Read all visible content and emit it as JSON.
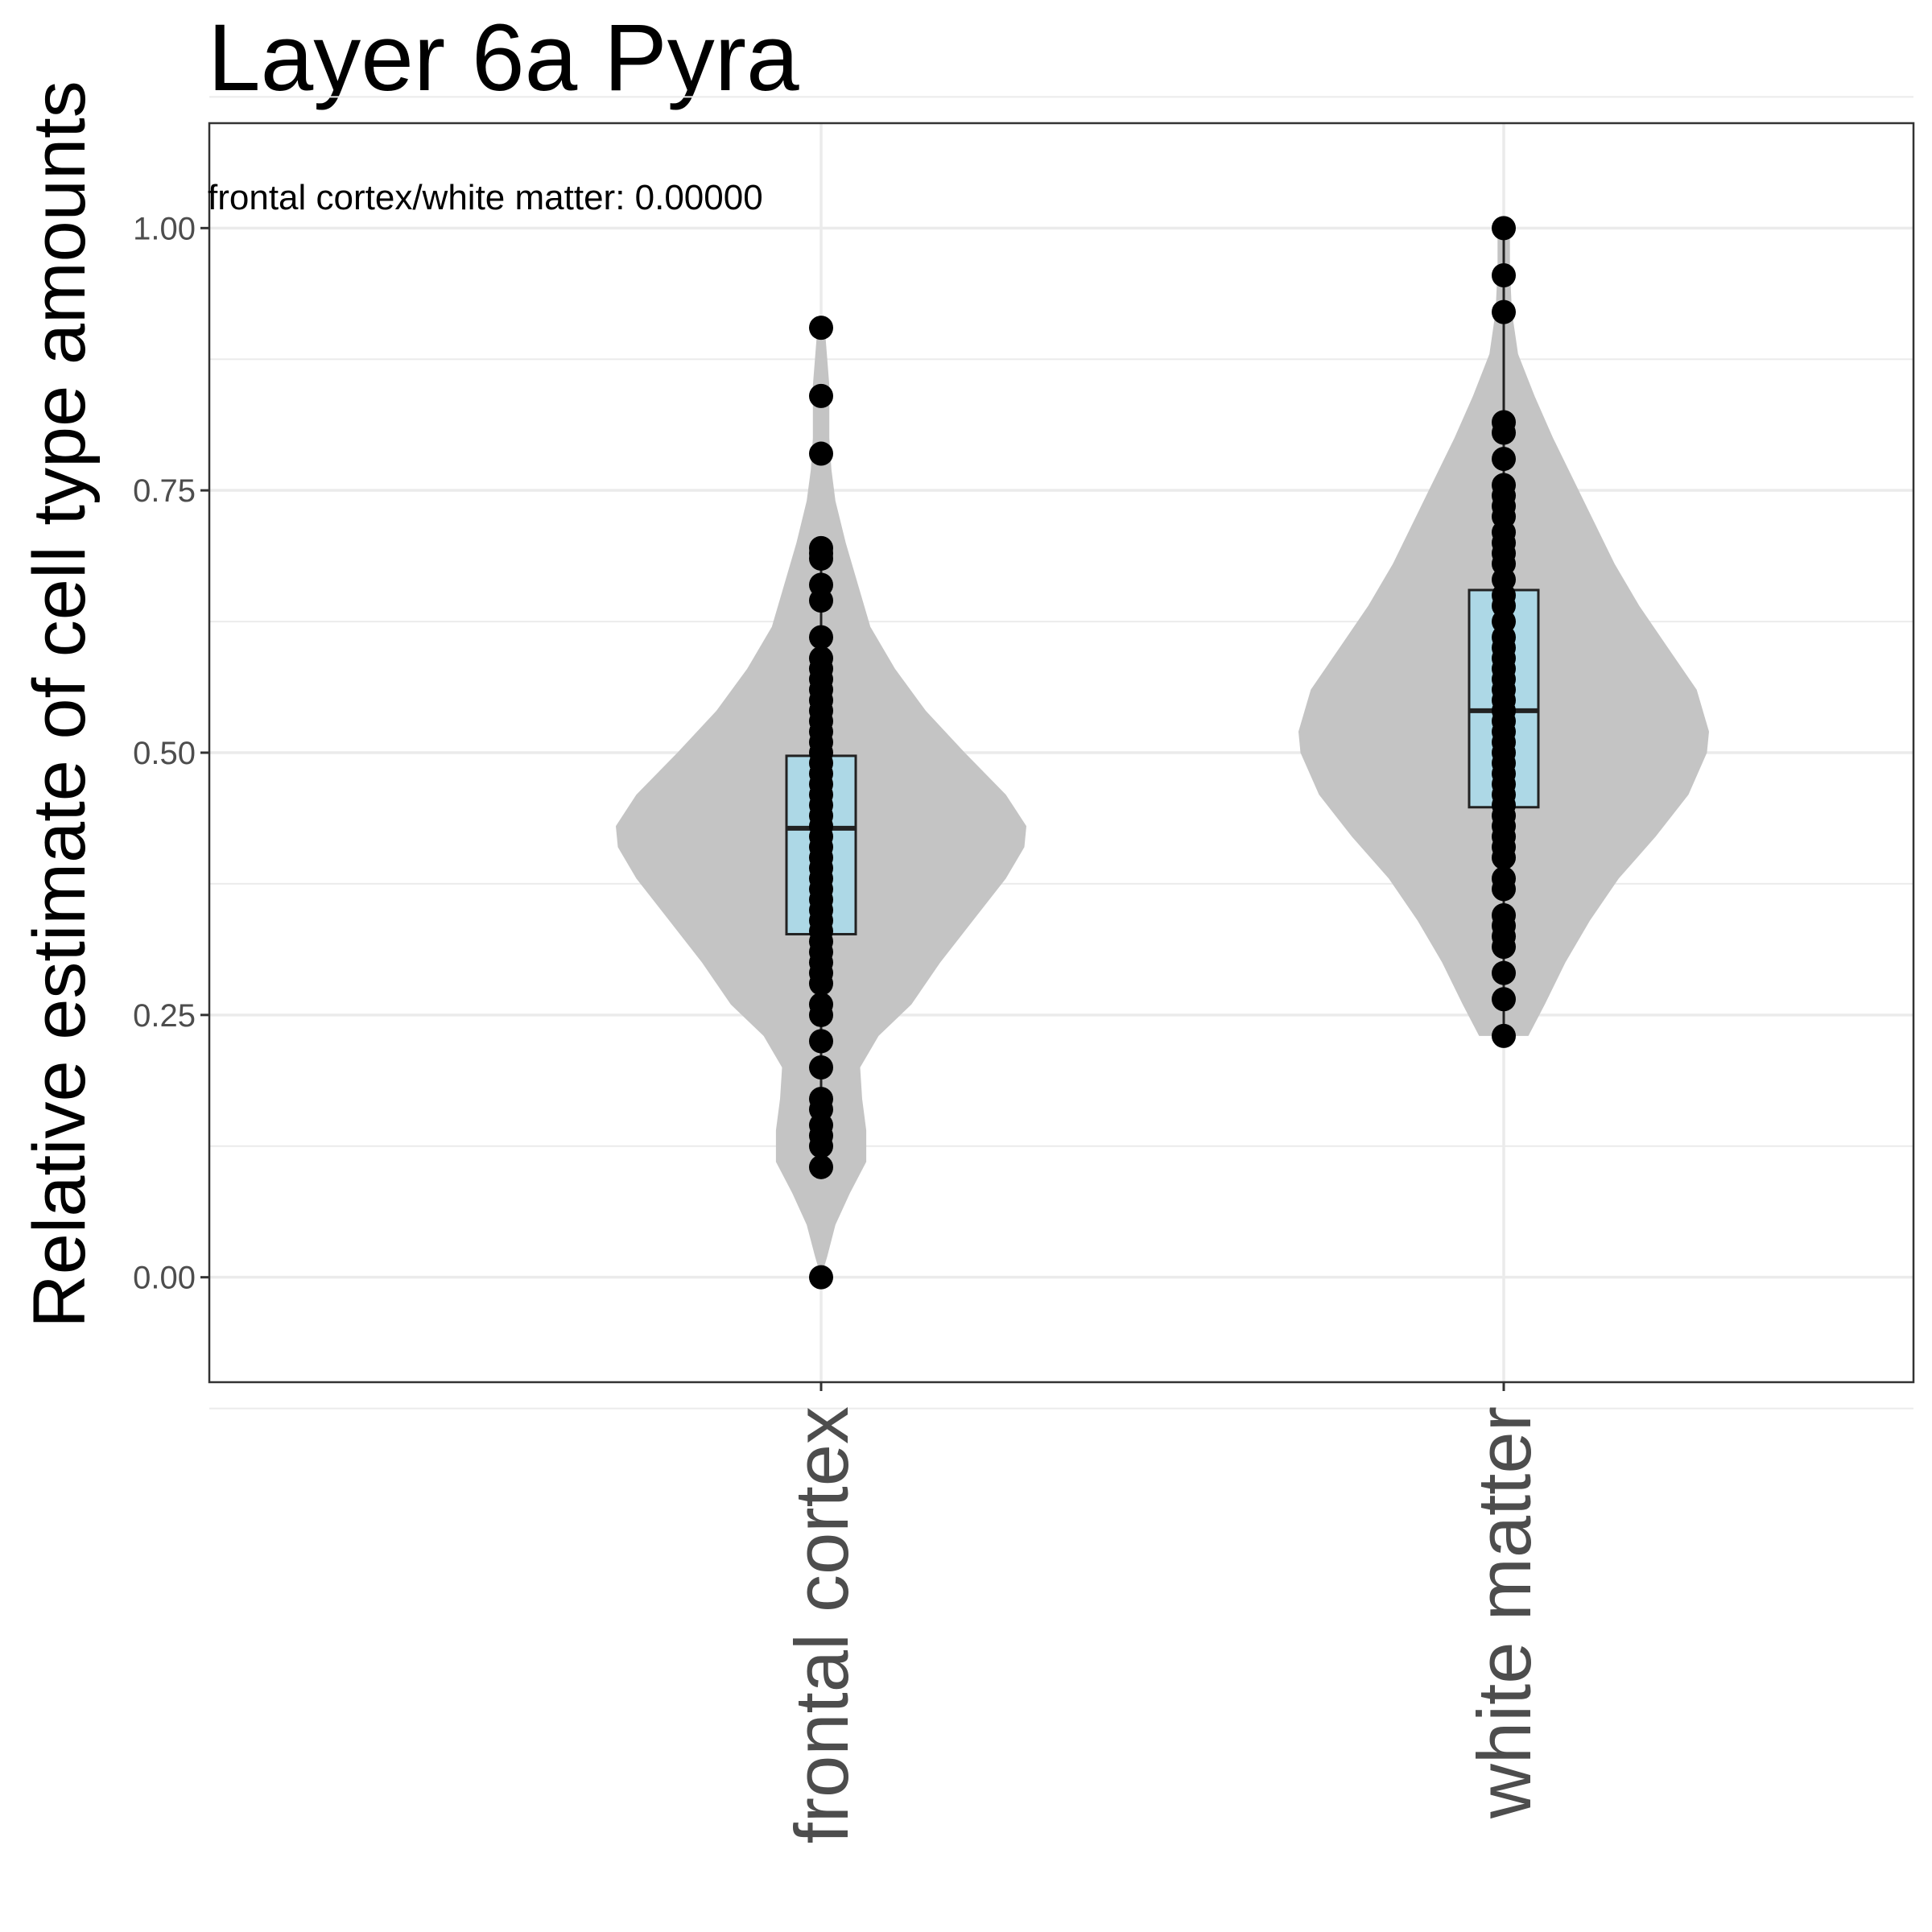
{
  "chart_data": {
    "type": "violin",
    "title": "Layer 6a Pyra",
    "xlabel": "",
    "ylabel": "Relative estimate of cell type amounts",
    "ylim": [
      -0.1,
      1.1
    ],
    "y_ticks": [
      0.0,
      0.25,
      0.5,
      0.75,
      1.0
    ],
    "y_tick_labels": [
      "0.00",
      "0.25",
      "0.50",
      "0.75",
      "1.00"
    ],
    "categories": [
      "frontal cortex",
      "white matter"
    ],
    "annotation": "frontal cortex/white matter: 0.00000",
    "grid": true,
    "colors": {
      "violin": "#c4c4c4",
      "box": "#add8e6",
      "box_stroke": "#222222",
      "points": "#000000",
      "grid": "#ebebeb",
      "panel_border": "#333333"
    },
    "groups": [
      {
        "name": "frontal cortex",
        "box": {
          "min": 0.105,
          "q1": 0.327,
          "median": 0.428,
          "q3": 0.497,
          "max": 0.69
        },
        "violin_profile": [
          [
            0.0,
            0.0
          ],
          [
            0.02,
            0.03
          ],
          [
            0.05,
            0.07
          ],
          [
            0.08,
            0.14
          ],
          [
            0.11,
            0.22
          ],
          [
            0.14,
            0.22
          ],
          [
            0.17,
            0.2
          ],
          [
            0.2,
            0.19
          ],
          [
            0.23,
            0.28
          ],
          [
            0.26,
            0.44
          ],
          [
            0.3,
            0.58
          ],
          [
            0.34,
            0.74
          ],
          [
            0.38,
            0.9
          ],
          [
            0.41,
            0.99
          ],
          [
            0.43,
            1.0
          ],
          [
            0.46,
            0.9
          ],
          [
            0.5,
            0.7
          ],
          [
            0.54,
            0.51
          ],
          [
            0.58,
            0.36
          ],
          [
            0.62,
            0.24
          ],
          [
            0.66,
            0.18
          ],
          [
            0.7,
            0.12
          ],
          [
            0.74,
            0.07
          ],
          [
            0.77,
            0.05
          ],
          [
            0.8,
            0.04
          ],
          [
            0.85,
            0.04
          ],
          [
            0.9,
            0.02
          ]
        ],
        "points": [
          0.905,
          0.84,
          0.785,
          0.695,
          0.69,
          0.685,
          0.66,
          0.645,
          0.61,
          0.59,
          0.58,
          0.57,
          0.56,
          0.55,
          0.54,
          0.53,
          0.52,
          0.51,
          0.5,
          0.49,
          0.48,
          0.47,
          0.46,
          0.45,
          0.44,
          0.43,
          0.42,
          0.41,
          0.4,
          0.39,
          0.38,
          0.37,
          0.36,
          0.35,
          0.34,
          0.33,
          0.32,
          0.31,
          0.3,
          0.29,
          0.28,
          0.26,
          0.25,
          0.225,
          0.2,
          0.17,
          0.16,
          0.145,
          0.135,
          0.125,
          0.105,
          0.0
        ]
      },
      {
        "name": "white matter",
        "box": {
          "min": 0.23,
          "q1": 0.448,
          "median": 0.54,
          "q3": 0.655,
          "max": 1.0
        },
        "violin_profile": [
          [
            0.23,
            0.12
          ],
          [
            0.26,
            0.2
          ],
          [
            0.3,
            0.3
          ],
          [
            0.34,
            0.42
          ],
          [
            0.38,
            0.56
          ],
          [
            0.42,
            0.74
          ],
          [
            0.46,
            0.9
          ],
          [
            0.5,
            0.99
          ],
          [
            0.52,
            1.0
          ],
          [
            0.56,
            0.94
          ],
          [
            0.6,
            0.8
          ],
          [
            0.64,
            0.66
          ],
          [
            0.68,
            0.54
          ],
          [
            0.72,
            0.44
          ],
          [
            0.76,
            0.34
          ],
          [
            0.8,
            0.24
          ],
          [
            0.84,
            0.15
          ],
          [
            0.88,
            0.07
          ],
          [
            0.92,
            0.04
          ],
          [
            0.96,
            0.03
          ],
          [
            1.0,
            0.03
          ]
        ],
        "points": [
          1.0,
          0.955,
          0.92,
          0.815,
          0.805,
          0.78,
          0.755,
          0.745,
          0.735,
          0.725,
          0.71,
          0.7,
          0.69,
          0.68,
          0.665,
          0.65,
          0.64,
          0.625,
          0.61,
          0.6,
          0.59,
          0.58,
          0.57,
          0.56,
          0.55,
          0.54,
          0.53,
          0.52,
          0.51,
          0.5,
          0.49,
          0.48,
          0.47,
          0.46,
          0.45,
          0.44,
          0.43,
          0.42,
          0.41,
          0.4,
          0.38,
          0.37,
          0.345,
          0.335,
          0.325,
          0.315,
          0.29,
          0.265,
          0.23
        ]
      }
    ]
  }
}
